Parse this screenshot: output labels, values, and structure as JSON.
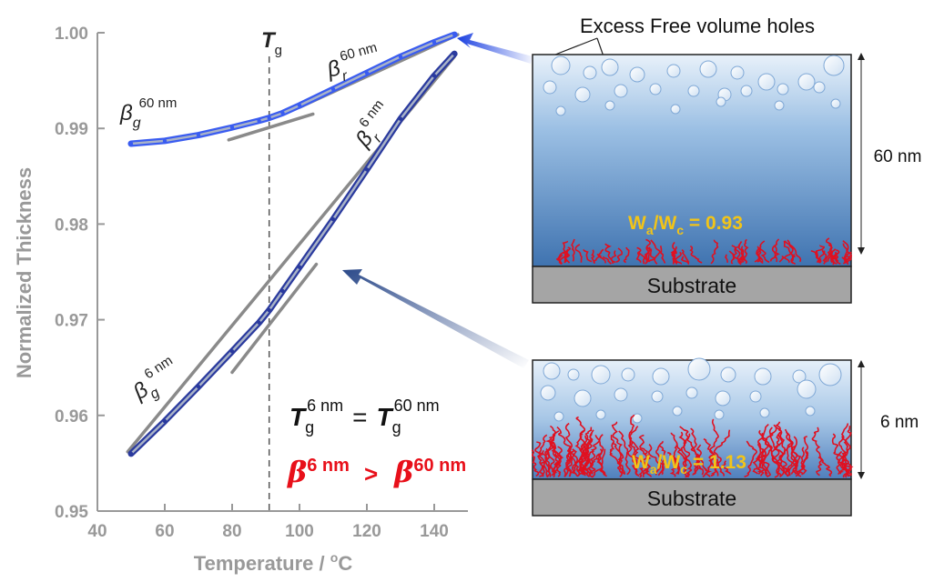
{
  "chart_data": {
    "type": "line",
    "xlabel": "Temperature / ",
    "xlabel_unit_sup": "o",
    "xlabel_unit": "C",
    "ylabel": "Normalized Thickness",
    "xlim": [
      40,
      150
    ],
    "ylim": [
      0.95,
      1.0
    ],
    "x_ticks": [
      "40",
      "60",
      "80",
      "100",
      "120",
      "140"
    ],
    "y_ticks": [
      "0.95",
      "0.96",
      "0.97",
      "0.98",
      "0.99",
      "1.00"
    ],
    "grid": false,
    "tg_value": 91,
    "tg_label": "T",
    "tg_sub": "g",
    "series": [
      {
        "x": [
          50,
          60,
          70,
          80,
          88,
          91,
          95,
          100,
          110,
          120,
          130,
          140,
          146
        ],
        "y": [
          0.9884,
          0.9887,
          0.9893,
          0.9901,
          0.9908,
          0.9911,
          0.9916,
          0.9924,
          0.9941,
          0.9958,
          0.9975,
          0.999,
          0.9998
        ],
        "color": "#3a5cf0"
      },
      {
        "x": [
          50,
          60,
          70,
          80,
          88,
          91,
          95,
          100,
          110,
          120,
          130,
          140,
          146
        ],
        "y": [
          0.956,
          0.9594,
          0.963,
          0.9667,
          0.9697,
          0.971,
          0.973,
          0.9755,
          0.9805,
          0.9857,
          0.991,
          0.9955,
          0.9978
        ],
        "color": "#2a3a9e"
      }
    ],
    "tangents": [
      {
        "x": [
          79,
          104
        ],
        "y": [
          0.9888,
          0.9915
        ]
      },
      {
        "x": [
          100,
          147
        ],
        "y": [
          0.9922,
          0.9998
        ]
      },
      {
        "x": [
          49,
          146
        ],
        "y": [
          0.9562,
          0.9975
        ]
      },
      {
        "x": [
          80,
          105
        ],
        "y": [
          0.9645,
          0.9758
        ]
      }
    ],
    "annotations": {
      "beta_g_60": {
        "base": "β",
        "sub": "g",
        "sup": "60 nm"
      },
      "beta_r_60": {
        "base": "β",
        "sub": "r",
        "sup": "60 nm"
      },
      "beta_r_6": {
        "base": "β",
        "sub": "r",
        "sup": "6 nm"
      },
      "beta_g_6": {
        "base": "β",
        "sub": "g",
        "sup": "6 nm"
      }
    },
    "equation": {
      "T": "T",
      "g": "g",
      "sup6": "6 nm",
      "eq": "=",
      "sup60": "60 nm"
    },
    "inequality": {
      "beta": "β",
      "sup6": "6 nm",
      "gt": ">",
      "sup60": "60 nm",
      "color": "#e8101a"
    }
  },
  "schematic": {
    "top_label": "Excess Free volume holes",
    "film60": {
      "thickness": "60 nm",
      "ratio_prefix": "W",
      "ratio_sub_a": "a",
      "ratio_mid": "/W",
      "ratio_sub_c": "c",
      "ratio_value": " = 0.93",
      "substrate": "Substrate"
    },
    "film6": {
      "thickness": "6 nm",
      "ratio_prefix": "W",
      "ratio_sub_a": "a",
      "ratio_mid": "/W",
      "ratio_sub_c": "c",
      "ratio_value": " = 1.13",
      "substrate": "Substrate"
    },
    "ratio_color": "#f2c418",
    "chain_color": "#e01020"
  }
}
